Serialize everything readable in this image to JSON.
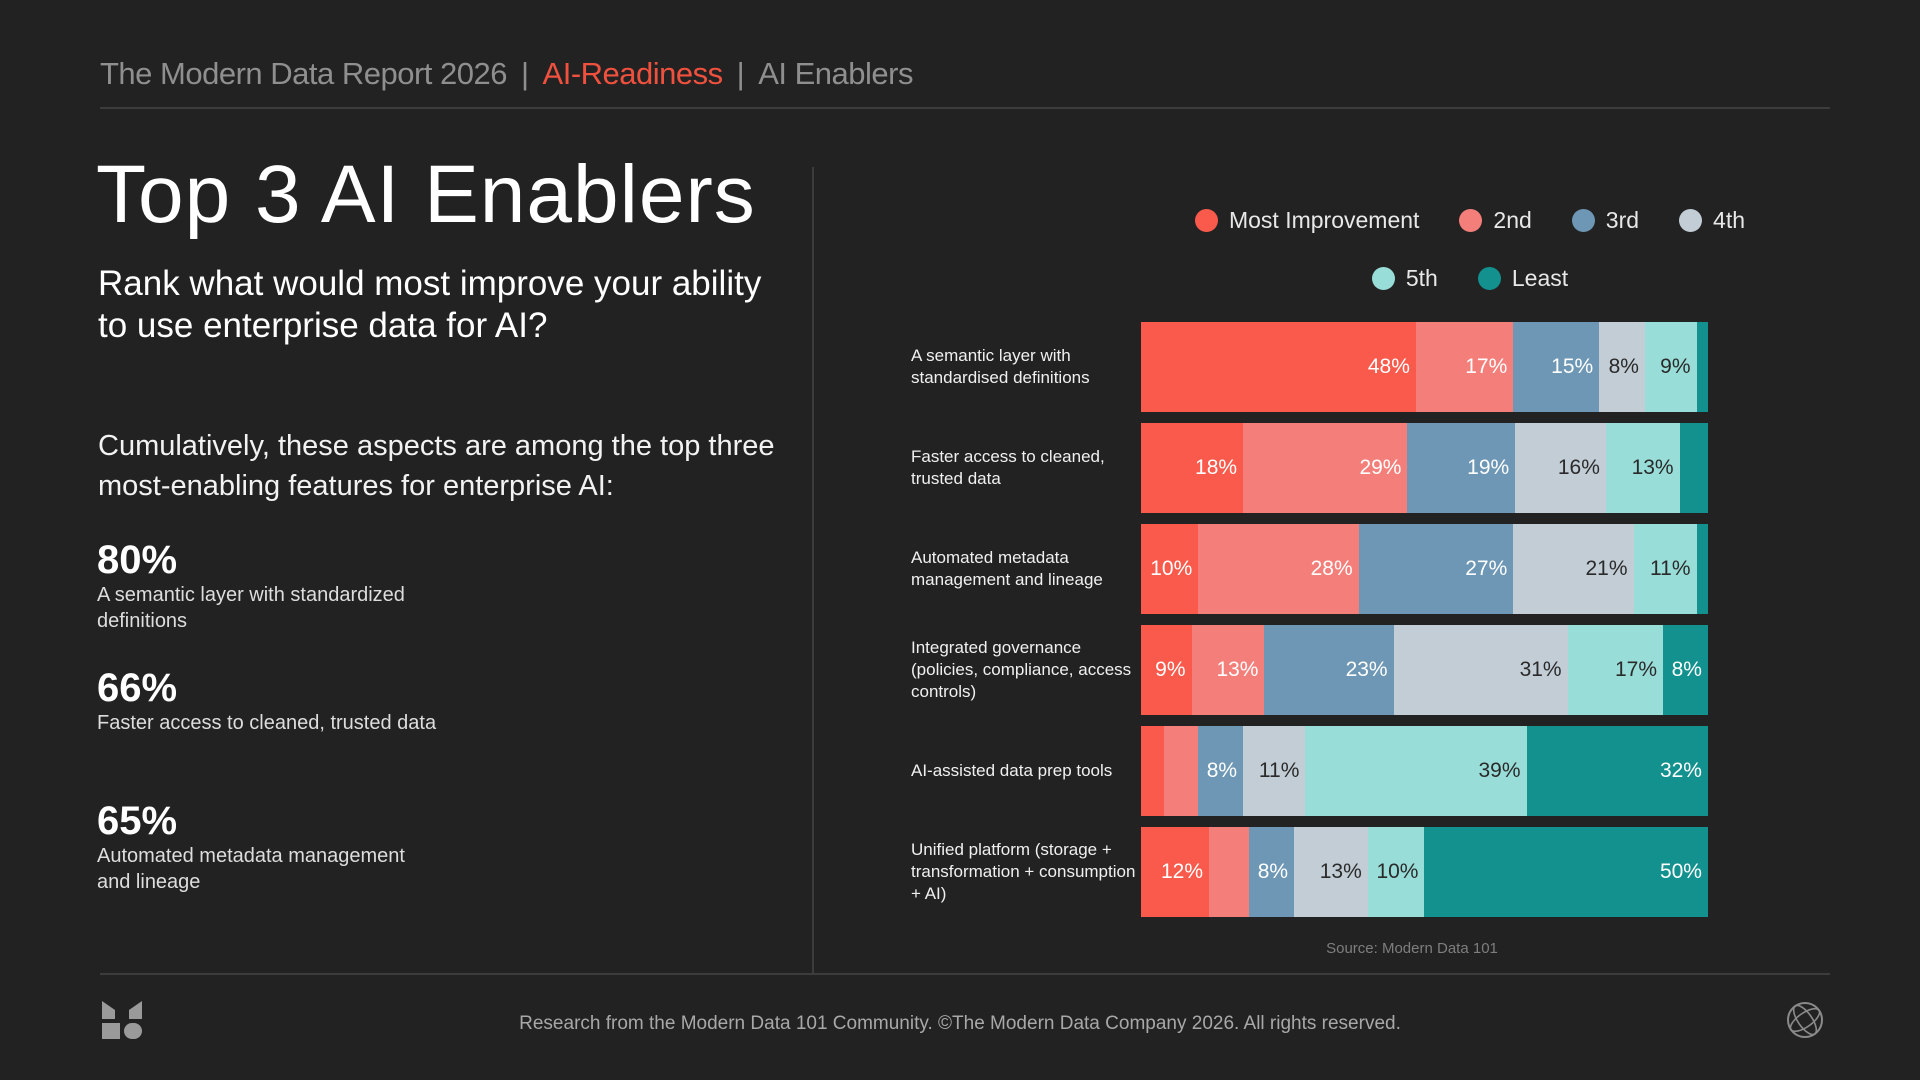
{
  "header": {
    "report": "The Modern Data Report  2026",
    "separator": "|",
    "section": "AI-Readiness",
    "subsection": "AI Enablers"
  },
  "title": "Top 3 AI Enablers",
  "question": "Rank what would most improve your ability to use enterprise data for AI?",
  "cumulative_text": "Cumulatively, these aspects are among the top three most-enabling features for enterprise AI:",
  "stats": [
    {
      "value": "80%",
      "label": "A semantic layer with standardized definitions"
    },
    {
      "value": "66%",
      "label": "Faster access to cleaned, trusted data"
    },
    {
      "value": "65%",
      "label": "Automated metadata management and lineage"
    }
  ],
  "colors": {
    "accent": "#f0513f",
    "background": "#222222"
  },
  "chart_data": {
    "type": "bar",
    "orientation": "horizontal-stacked-100",
    "legend": [
      {
        "name": "Most Improvement",
        "color": "#fa5a4c"
      },
      {
        "name": "2nd",
        "color": "#f47f7a"
      },
      {
        "name": "3rd",
        "color": "#6d97b5"
      },
      {
        "name": "4th",
        "color": "#c2cdd6"
      },
      {
        "name": "5th",
        "color": "#98ddd8"
      },
      {
        "name": "Least",
        "color": "#13918f"
      }
    ],
    "categories": [
      "A semantic layer with standardised definitions",
      "Faster access to cleaned, trusted data",
      "Automated metadata management and lineage",
      "Integrated governance (policies, compliance, access controls)",
      "AI-assisted data prep tools",
      "Unified platform (storage + transformation + consumption + AI)"
    ],
    "series": [
      {
        "name": "Most Improvement",
        "values": [
          48,
          18,
          10,
          9,
          4,
          12
        ]
      },
      {
        "name": "2nd",
        "values": [
          17,
          29,
          28,
          13,
          6,
          7
        ]
      },
      {
        "name": "3rd",
        "values": [
          15,
          19,
          27,
          23,
          8,
          8
        ]
      },
      {
        "name": "4th",
        "values": [
          8,
          16,
          21,
          31,
          11,
          13
        ]
      },
      {
        "name": "5th",
        "values": [
          9,
          13,
          11,
          17,
          39,
          10
        ]
      },
      {
        "name": "Least",
        "values": [
          2,
          5,
          2,
          8,
          32,
          50
        ]
      }
    ],
    "data_labels": [
      [
        "48%",
        "17%",
        "15%",
        "8%",
        "9%",
        ""
      ],
      [
        "18%",
        "29%",
        "19%",
        "16%",
        "13%",
        ""
      ],
      [
        "10%",
        "28%",
        "27%",
        "21%",
        "11%",
        ""
      ],
      [
        "9%",
        "13%",
        "23%",
        "31%",
        "17%",
        "8%"
      ],
      [
        "",
        "",
        "8%",
        "11%",
        "39%",
        "32%"
      ],
      [
        "12%",
        "",
        "8%",
        "13%",
        "10%",
        "50%"
      ]
    ],
    "source": "Source: Modern Data 101",
    "legend_position": "top"
  },
  "footer": {
    "copyright": "Research from the Modern Data 101 Community. ©The Modern Data Company 2026. All rights reserved.",
    "logo_icon": "modern-data-logo-icon",
    "globe_icon": "globe-icon"
  }
}
